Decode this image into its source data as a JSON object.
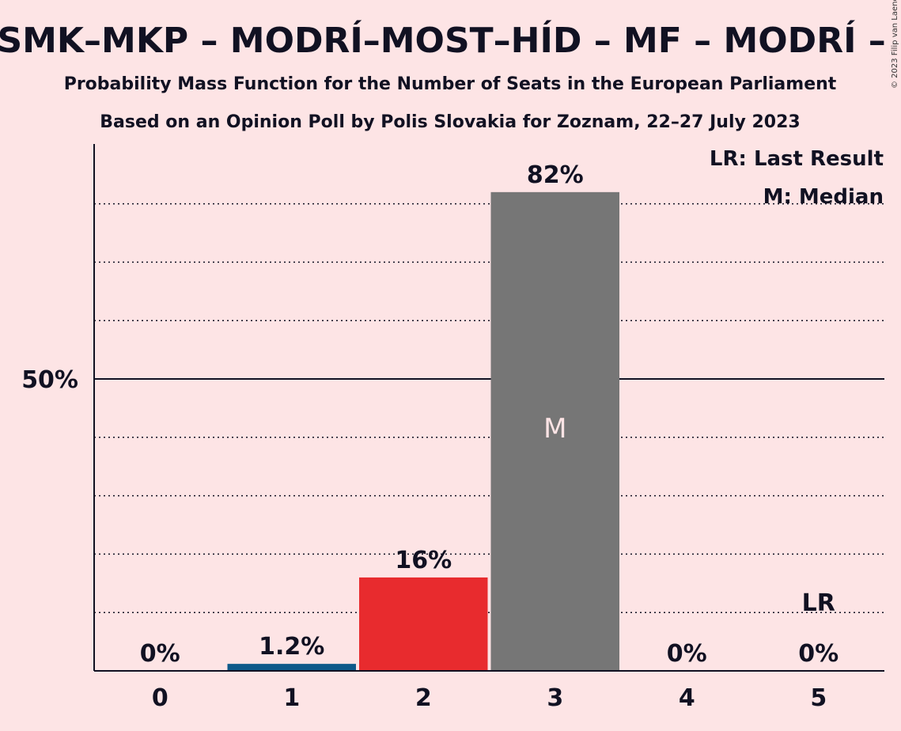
{
  "title": "– SMK–MKP – MODRÍ–MOST–HÍD – MF – MODRÍ – M",
  "subtitle_1": "Probability Mass Function for the Number of Seats in the European Parliament",
  "subtitle_2": "Based on an Opinion Poll by Polis Slovakia for Zoznam, 22–27 July 2023",
  "copyright": "© 2023 Filip van Laenen",
  "legend": {
    "last_result": "LR: Last Result",
    "median": "M: Median"
  },
  "chart_data": {
    "type": "bar",
    "categories": [
      "0",
      "1",
      "2",
      "3",
      "4",
      "5"
    ],
    "values": [
      0,
      1.2,
      16,
      82,
      0,
      0
    ],
    "data_labels": [
      "0%",
      "1.2%",
      "16%",
      "82%",
      "0%",
      "0%"
    ],
    "bar_colors": [
      "#0E5A8A",
      "#0E5A8A",
      "#E82B2E",
      "#767676",
      "#767676",
      "#767676"
    ],
    "ylim": [
      0,
      90
    ],
    "y_ticks": [
      {
        "value": 50,
        "label": "50%"
      }
    ],
    "gridlines": [
      10,
      20,
      30,
      40,
      60,
      70,
      80
    ],
    "median_category": "3",
    "median_marker": "M",
    "last_result_category": "5",
    "last_result_marker": "LR"
  }
}
